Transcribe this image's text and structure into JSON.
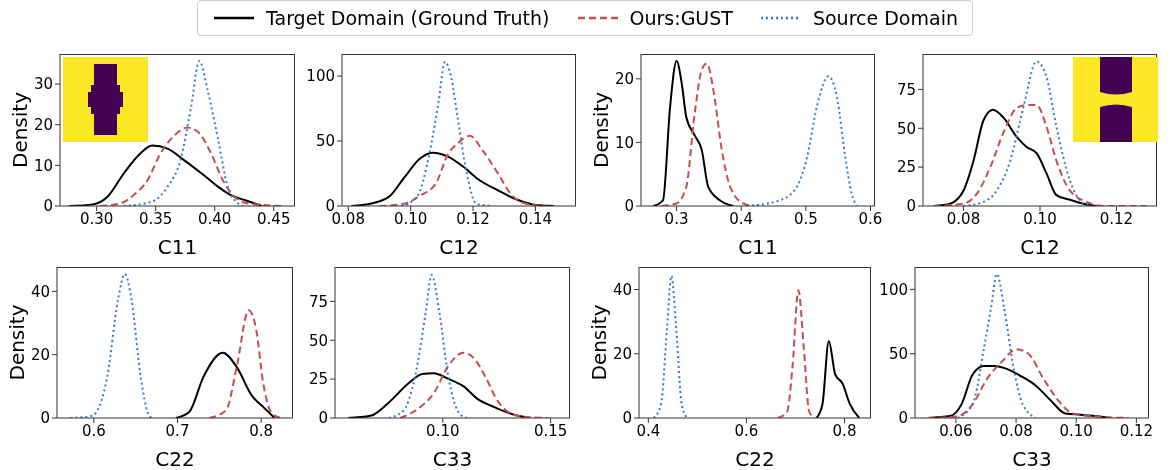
{
  "chart_data": [
    {
      "type": "line",
      "xlabel": "C11",
      "ylabel": "Density",
      "legend": "top",
      "xlim": [
        0.269,
        0.468
      ],
      "ylim": [
        0,
        37.4
      ],
      "xticks": [
        {
          "value": 0.3,
          "label": "0.30"
        },
        {
          "value": 0.35,
          "label": "0.35"
        },
        {
          "value": 0.4,
          "label": "0.40"
        },
        {
          "value": 0.45,
          "label": "0.45"
        }
      ],
      "yticks": [
        0,
        10,
        20,
        30
      ],
      "series": [
        {
          "name": "Target Domain (Ground Truth)",
          "color": "#000000",
          "line_style": "solid",
          "x": [
            0.277,
            0.297,
            0.309,
            0.323,
            0.337,
            0.347,
            0.36,
            0.374,
            0.389,
            0.403,
            0.414,
            0.426,
            0.44
          ],
          "values": [
            0,
            0.4,
            2.2,
            8,
            12.9,
            14.9,
            14.1,
            11.3,
            8,
            4.7,
            2.6,
            1.4,
            0
          ]
        },
        {
          "name": "Ours:GUST",
          "color": "#c44e52",
          "line_style": "dashed",
          "x": [
            0.303,
            0.32,
            0.331,
            0.343,
            0.354,
            0.366,
            0.377,
            0.386,
            0.397,
            0.407,
            0.417,
            0.429,
            0.457
          ],
          "values": [
            0,
            0.6,
            2.6,
            6.3,
            12.9,
            17.4,
            19.3,
            18.2,
            12.9,
            6.3,
            2.2,
            0.6,
            0
          ]
        },
        {
          "name": "Source Domain",
          "color": "#3b78c3",
          "line_style": "dotted",
          "x": [
            0.323,
            0.346,
            0.36,
            0.371,
            0.38,
            0.387,
            0.394,
            0.403,
            0.411,
            0.42,
            0.424
          ],
          "values": [
            0,
            1,
            4.7,
            11.3,
            24.4,
            35.7,
            28.5,
            16.2,
            4.7,
            0.6,
            0
          ]
        }
      ]
    },
    {
      "type": "line",
      "xlabel": "C12",
      "xlim": [
        0.078,
        0.153
      ],
      "ylim": [
        0,
        117
      ],
      "xticks": [
        {
          "value": 0.08,
          "label": "0.08"
        },
        {
          "value": 0.1,
          "label": "0.10"
        },
        {
          "value": 0.12,
          "label": "0.12"
        },
        {
          "value": 0.14,
          "label": "0.14"
        }
      ],
      "yticks": [
        0,
        50,
        100
      ],
      "series": [
        {
          "color": "#000000",
          "line_style": "solid",
          "x": [
            0.081,
            0.087,
            0.093,
            0.098,
            0.103,
            0.107,
            0.112,
            0.117,
            0.122,
            0.128,
            0.134,
            0.141,
            0.146
          ],
          "values": [
            0,
            1.8,
            7,
            22,
            36.5,
            41,
            38,
            30,
            20,
            12,
            5,
            0.5,
            0
          ]
        },
        {
          "color": "#c44e52",
          "line_style": "dashed",
          "x": [
            0.09,
            0.098,
            0.103,
            0.108,
            0.112,
            0.115,
            0.119,
            0.123,
            0.128,
            0.132,
            0.137,
            0.143
          ],
          "values": [
            0,
            1.8,
            8,
            17,
            40,
            48,
            54,
            43,
            25,
            9.5,
            1.8,
            0
          ]
        },
        {
          "color": "#3b78c3",
          "line_style": "dotted",
          "x": [
            0.097,
            0.102,
            0.106,
            0.109,
            0.111,
            0.113,
            0.115,
            0.118,
            0.121,
            0.126
          ],
          "values": [
            0,
            7,
            40,
            81,
            111,
            99,
            69,
            25,
            1.8,
            0
          ]
        }
      ]
    },
    {
      "type": "line",
      "xlabel": "C11",
      "ylabel": "Density",
      "xlim": [
        0.245,
        0.607
      ],
      "ylim": [
        0,
        23.9
      ],
      "xticks": [
        0.3,
        0.4,
        0.5,
        0.6
      ],
      "yticks": [
        0,
        10,
        20
      ],
      "series": [
        {
          "color": "#000000",
          "line_style": "solid",
          "x": [
            0.264,
            0.279,
            0.29,
            0.3,
            0.308,
            0.315,
            0.328,
            0.339,
            0.349,
            0.367,
            0.388
          ],
          "values": [
            0,
            0.9,
            15.6,
            22.8,
            19.3,
            14,
            11.1,
            8.8,
            3,
            0.9,
            0
          ]
        },
        {
          "color": "#c44e52",
          "line_style": "dashed",
          "x": [
            0.277,
            0.3,
            0.315,
            0.328,
            0.339,
            0.347,
            0.357,
            0.37,
            0.383,
            0.403,
            0.419
          ],
          "values": [
            0,
            0.4,
            3,
            14.5,
            21.4,
            22.4,
            18.2,
            8.8,
            3,
            0.4,
            0
          ]
        },
        {
          "color": "#3b78c3",
          "line_style": "dotted",
          "x": [
            0.409,
            0.46,
            0.486,
            0.502,
            0.517,
            0.535,
            0.548,
            0.561,
            0.571,
            0.579
          ],
          "values": [
            0,
            0.9,
            3,
            7.7,
            15.6,
            20.4,
            17.2,
            7.7,
            1.9,
            0
          ]
        }
      ]
    },
    {
      "type": "line",
      "xlabel": "C12",
      "xlim": [
        0.0694,
        0.1306
      ],
      "ylim": [
        0,
        97.8
      ],
      "xticks": [
        {
          "value": 0.08,
          "label": "0.08"
        },
        {
          "value": 0.1,
          "label": "0.10"
        },
        {
          "value": 0.12,
          "label": "0.12"
        }
      ],
      "yticks": [
        0,
        25,
        50,
        75
      ],
      "series": [
        {
          "color": "#000000",
          "line_style": "solid",
          "x": [
            0.0722,
            0.0765,
            0.08,
            0.0826,
            0.0852,
            0.0877,
            0.0904,
            0.0939,
            0.0965,
            0.0991,
            0.1017,
            0.1043,
            0.1078,
            0.1113,
            0.1148
          ],
          "values": [
            0,
            1.5,
            10,
            29,
            55,
            62,
            57,
            44.5,
            38,
            34,
            21,
            7,
            4,
            1.5,
            0
          ]
        },
        {
          "color": "#c44e52",
          "line_style": "dashed",
          "x": [
            0.0722,
            0.08,
            0.0835,
            0.087,
            0.0904,
            0.0939,
            0.0965,
            0.0991,
            0.1017,
            0.1043,
            0.1078,
            0.1122,
            0.1165,
            0.1278
          ],
          "values": [
            0,
            1.5,
            8,
            25,
            47,
            63,
            65,
            65,
            51,
            29,
            10,
            2.6,
            0,
            0
          ]
        },
        {
          "color": "#3b78c3",
          "line_style": "dotted",
          "x": [
            0.08,
            0.0852,
            0.0887,
            0.0922,
            0.0957,
            0.0991,
            0.1017,
            0.1043,
            0.1078,
            0.1104,
            0.113
          ],
          "values": [
            0,
            2.6,
            10,
            29,
            64,
            93,
            83,
            51,
            16.5,
            3.7,
            0
          ]
        }
      ]
    },
    {
      "type": "line",
      "xlabel": "C22",
      "ylabel": "Density",
      "xlim": [
        0.556,
        0.838
      ],
      "ylim": [
        0,
        47.7
      ],
      "xticks": [
        0.6,
        0.7,
        0.8
      ],
      "yticks": [
        0,
        20,
        40
      ],
      "series": [
        {
          "color": "#000000",
          "line_style": "solid",
          "x": [
            0.698,
            0.714,
            0.731,
            0.754,
            0.771,
            0.789,
            0.802,
            0.816
          ],
          "values": [
            0,
            1.9,
            13,
            20.6,
            16,
            7,
            3.6,
            0
          ]
        },
        {
          "color": "#c44e52",
          "line_style": "dashed",
          "x": [
            0.738,
            0.758,
            0.771,
            0.785,
            0.794,
            0.802,
            0.813,
            0.824
          ],
          "values": [
            0,
            2.5,
            16.5,
            34,
            28,
            11.7,
            1.3,
            0
          ]
        },
        {
          "color": "#3b78c3",
          "line_style": "dotted",
          "x": [
            0.572,
            0.598,
            0.616,
            0.629,
            0.637,
            0.645,
            0.656,
            0.665,
            0.669
          ],
          "values": [
            0,
            0.7,
            13,
            37.5,
            45.5,
            37.5,
            13,
            1.3,
            0
          ]
        }
      ]
    },
    {
      "type": "line",
      "xlabel": "C33",
      "xlim": [
        0.05,
        0.159
      ],
      "ylim": [
        0,
        97.1
      ],
      "xticks": [
        {
          "value": 0.1,
          "label": "0.10"
        },
        {
          "value": 0.15,
          "label": "0.15"
        }
      ],
      "yticks": [
        0,
        25,
        50,
        75
      ],
      "series": [
        {
          "color": "#000000",
          "line_style": "solid",
          "x": [
            0.056,
            0.0664,
            0.075,
            0.0836,
            0.0905,
            0.0957,
            0.1026,
            0.1095,
            0.1164,
            0.1233,
            0.1319,
            0.1405
          ],
          "values": [
            0,
            1.4,
            10,
            21.7,
            28.3,
            28.8,
            25.2,
            20.5,
            12,
            7.4,
            2.6,
            0
          ]
        },
        {
          "color": "#c44e52",
          "line_style": "dashed",
          "x": [
            0.0802,
            0.0888,
            0.0957,
            0.1026,
            0.1095,
            0.1147,
            0.1198,
            0.125,
            0.1319,
            0.1388,
            0.1491
          ],
          "values": [
            0,
            6.2,
            15.7,
            33.6,
            42,
            38,
            26.4,
            12,
            2.6,
            0.7,
            0
          ]
        },
        {
          "color": "#3b78c3",
          "line_style": "dotted",
          "x": [
            0.075,
            0.0819,
            0.0871,
            0.0922,
            0.0948,
            0.0983,
            0.1026,
            0.1078,
            0.1112
          ],
          "values": [
            0,
            5,
            26.4,
            69,
            92,
            69,
            26.4,
            2.6,
            0
          ]
        }
      ]
    },
    {
      "type": "line",
      "xlabel": "C22",
      "ylabel": "Density",
      "xlim": [
        0.381,
        0.854
      ],
      "ylim": [
        0,
        47
      ],
      "xticks": [
        0.4,
        0.6,
        0.8
      ],
      "yticks": [
        0,
        20,
        40
      ],
      "series": [
        {
          "color": "#000000",
          "line_style": "solid",
          "x": [
            0.743,
            0.755,
            0.768,
            0.781,
            0.796,
            0.811,
            0.83
          ],
          "values": [
            0,
            4.3,
            24,
            13.6,
            10.7,
            4.3,
            0
          ]
        },
        {
          "color": "#c44e52",
          "line_style": "dashed",
          "x": [
            0.664,
            0.683,
            0.694,
            0.706,
            0.717,
            0.728,
            0.74
          ],
          "values": [
            0,
            2,
            16,
            39.8,
            21.7,
            2,
            0
          ]
        },
        {
          "color": "#3b78c3",
          "line_style": "dotted",
          "x": [
            0.411,
            0.426,
            0.438,
            0.447,
            0.457,
            0.468,
            0.479
          ],
          "values": [
            0,
            4.3,
            27.6,
            44.2,
            27.6,
            4.3,
            0
          ]
        }
      ]
    },
    {
      "type": "line",
      "xlabel": "C33",
      "xlim": [
        0.0464,
        0.1242
      ],
      "ylim": [
        0,
        117.4
      ],
      "xticks": [
        {
          "value": 0.06,
          "label": "0.06"
        },
        {
          "value": 0.08,
          "label": "0.08"
        },
        {
          "value": 0.1,
          "label": "0.10"
        },
        {
          "value": 0.12,
          "label": "0.12"
        }
      ],
      "yticks": [
        0,
        50,
        100
      ],
      "series": [
        {
          "color": "#000000",
          "line_style": "solid",
          "x": [
            0.0507,
            0.0581,
            0.0619,
            0.0656,
            0.0693,
            0.073,
            0.0767,
            0.0816,
            0.0865,
            0.0915,
            0.0964,
            0.1014,
            0.1063,
            0.1112
          ],
          "values": [
            0,
            1.5,
            10.8,
            34,
            40.4,
            40.4,
            38.4,
            32.6,
            25.3,
            13.7,
            3.5,
            2.6,
            1.5,
            0
          ]
        },
        {
          "color": "#c44e52",
          "line_style": "dashed",
          "x": [
            0.0507,
            0.0606,
            0.0656,
            0.0705,
            0.0754,
            0.08,
            0.0841,
            0.089,
            0.094,
            0.0989,
            0.1051,
            0.1174
          ],
          "values": [
            0,
            1.5,
            10.8,
            31,
            44,
            53.5,
            50,
            31,
            13.7,
            3.5,
            1.5,
            0
          ]
        },
        {
          "color": "#3b78c3",
          "line_style": "dotted",
          "x": [
            0.0606,
            0.0656,
            0.0693,
            0.0717,
            0.0736,
            0.076,
            0.0791,
            0.0822,
            0.0865
          ],
          "values": [
            0,
            10.8,
            54,
            86,
            112,
            86,
            40,
            10.8,
            0
          ]
        }
      ]
    }
  ]
}
